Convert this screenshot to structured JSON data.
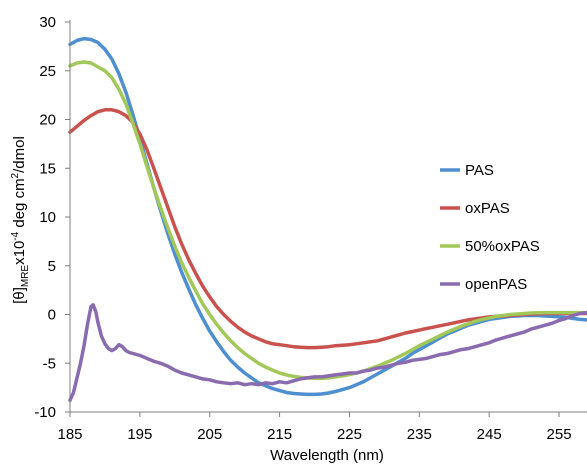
{
  "chart_data": {
    "type": "line",
    "xlabel": "Wavelength (nm)",
    "ylabel": {
      "prefix": "[θ]",
      "subscript": "MRE",
      "middle": "x10",
      "superscript": "-4",
      "suffix": " deg cm",
      "superscript2": "2",
      "tail": "/dmol"
    },
    "xlim": [
      185,
      259
    ],
    "ylim": [
      -10,
      30
    ],
    "xticks": [
      185,
      195,
      205,
      215,
      225,
      235,
      245,
      255
    ],
    "yticks": [
      -10,
      -5,
      0,
      5,
      10,
      15,
      20,
      25,
      30
    ],
    "grid": false,
    "legend": "right",
    "series": [
      {
        "name": "PAS",
        "color": "#4F8FCF",
        "points": [
          [
            185,
            27.7
          ],
          [
            186,
            28.1
          ],
          [
            187,
            28.3
          ],
          [
            188,
            28.2
          ],
          [
            189,
            27.9
          ],
          [
            190,
            27.2
          ],
          [
            191,
            26.2
          ],
          [
            192,
            24.7
          ],
          [
            193,
            22.8
          ],
          [
            194,
            20.5
          ],
          [
            195,
            18.0
          ],
          [
            196,
            15.5
          ],
          [
            197,
            13.0
          ],
          [
            198,
            10.6
          ],
          [
            199,
            8.3
          ],
          [
            200,
            6.2
          ],
          [
            201,
            4.3
          ],
          [
            202,
            2.6
          ],
          [
            203,
            1.0
          ],
          [
            204,
            -0.4
          ],
          [
            205,
            -1.7
          ],
          [
            206,
            -2.8
          ],
          [
            207,
            -3.8
          ],
          [
            208,
            -4.7
          ],
          [
            209,
            -5.4
          ],
          [
            210,
            -6.0
          ],
          [
            211,
            -6.5
          ],
          [
            212,
            -7.0
          ],
          [
            213,
            -7.3
          ],
          [
            214,
            -7.6
          ],
          [
            215,
            -7.8
          ],
          [
            216,
            -8.0
          ],
          [
            217,
            -8.1
          ],
          [
            218,
            -8.15
          ],
          [
            219,
            -8.2
          ],
          [
            220,
            -8.2
          ],
          [
            221,
            -8.15
          ],
          [
            222,
            -8.05
          ],
          [
            223,
            -7.9
          ],
          [
            224,
            -7.7
          ],
          [
            225,
            -7.5
          ],
          [
            226,
            -7.2
          ],
          [
            227,
            -6.9
          ],
          [
            228,
            -6.5
          ],
          [
            229,
            -6.1
          ],
          [
            230,
            -5.7
          ],
          [
            231,
            -5.3
          ],
          [
            232,
            -4.9
          ],
          [
            233,
            -4.5
          ],
          [
            234,
            -4.0
          ],
          [
            235,
            -3.6
          ],
          [
            236,
            -3.2
          ],
          [
            237,
            -2.8
          ],
          [
            238,
            -2.4
          ],
          [
            239,
            -2.0
          ],
          [
            240,
            -1.7
          ],
          [
            241,
            -1.4
          ],
          [
            242,
            -1.1
          ],
          [
            243,
            -0.9
          ],
          [
            244,
            -0.7
          ],
          [
            245,
            -0.5
          ],
          [
            246,
            -0.4
          ],
          [
            247,
            -0.3
          ],
          [
            248,
            -0.2
          ],
          [
            249,
            -0.15
          ],
          [
            250,
            -0.1
          ],
          [
            251,
            -0.1
          ],
          [
            252,
            -0.1
          ],
          [
            253,
            -0.15
          ],
          [
            254,
            -0.2
          ],
          [
            255,
            -0.25
          ],
          [
            256,
            -0.3
          ],
          [
            257,
            -0.4
          ],
          [
            258,
            -0.5
          ],
          [
            259,
            -0.55
          ]
        ]
      },
      {
        "name": "oxPAS",
        "color": "#C9524E",
        "points": [
          [
            185,
            18.7
          ],
          [
            186,
            19.3
          ],
          [
            187,
            19.9
          ],
          [
            188,
            20.4
          ],
          [
            189,
            20.8
          ],
          [
            190,
            21.0
          ],
          [
            191,
            21.0
          ],
          [
            192,
            20.8
          ],
          [
            193,
            20.4
          ],
          [
            194,
            19.7
          ],
          [
            195,
            18.5
          ],
          [
            196,
            16.9
          ],
          [
            197,
            15.0
          ],
          [
            198,
            13.0
          ],
          [
            199,
            11.0
          ],
          [
            200,
            9.0
          ],
          [
            201,
            7.2
          ],
          [
            202,
            5.6
          ],
          [
            203,
            4.2
          ],
          [
            204,
            2.9
          ],
          [
            205,
            1.8
          ],
          [
            206,
            0.8
          ],
          [
            207,
            0.0
          ],
          [
            208,
            -0.7
          ],
          [
            209,
            -1.3
          ],
          [
            210,
            -1.8
          ],
          [
            211,
            -2.2
          ],
          [
            212,
            -2.5
          ],
          [
            213,
            -2.8
          ],
          [
            214,
            -3.0
          ],
          [
            215,
            -3.1
          ],
          [
            216,
            -3.2
          ],
          [
            217,
            -3.3
          ],
          [
            218,
            -3.35
          ],
          [
            219,
            -3.4
          ],
          [
            220,
            -3.4
          ],
          [
            221,
            -3.35
          ],
          [
            222,
            -3.3
          ],
          [
            223,
            -3.2
          ],
          [
            224,
            -3.15
          ],
          [
            225,
            -3.1
          ],
          [
            226,
            -3.0
          ],
          [
            227,
            -2.9
          ],
          [
            228,
            -2.8
          ],
          [
            229,
            -2.7
          ],
          [
            230,
            -2.5
          ],
          [
            231,
            -2.3
          ],
          [
            232,
            -2.1
          ],
          [
            233,
            -1.9
          ],
          [
            234,
            -1.75
          ],
          [
            235,
            -1.6
          ],
          [
            236,
            -1.45
          ],
          [
            237,
            -1.3
          ],
          [
            238,
            -1.15
          ],
          [
            239,
            -1.0
          ],
          [
            240,
            -0.85
          ],
          [
            241,
            -0.7
          ],
          [
            242,
            -0.55
          ],
          [
            243,
            -0.45
          ],
          [
            244,
            -0.35
          ],
          [
            245,
            -0.25
          ],
          [
            246,
            -0.2
          ],
          [
            247,
            -0.15
          ],
          [
            248,
            -0.1
          ],
          [
            249,
            -0.05
          ],
          [
            250,
            0.0
          ],
          [
            251,
            0.05
          ],
          [
            252,
            0.08
          ],
          [
            253,
            0.1
          ],
          [
            254,
            0.1
          ],
          [
            255,
            0.1
          ],
          [
            256,
            0.1
          ],
          [
            257,
            0.1
          ],
          [
            258,
            0.1
          ],
          [
            259,
            0.1
          ]
        ]
      },
      {
        "name": "50%oxPAS",
        "color": "#A3C85A",
        "points": [
          [
            185,
            25.5
          ],
          [
            186,
            25.8
          ],
          [
            187,
            25.9
          ],
          [
            188,
            25.8
          ],
          [
            189,
            25.4
          ],
          [
            190,
            25.0
          ],
          [
            191,
            24.3
          ],
          [
            192,
            23.1
          ],
          [
            193,
            21.6
          ],
          [
            194,
            19.6
          ],
          [
            195,
            17.5
          ],
          [
            196,
            15.2
          ],
          [
            197,
            13.0
          ],
          [
            198,
            10.9
          ],
          [
            199,
            8.9
          ],
          [
            200,
            7.0
          ],
          [
            201,
            5.3
          ],
          [
            202,
            3.8
          ],
          [
            203,
            2.4
          ],
          [
            204,
            1.1
          ],
          [
            205,
            0.0
          ],
          [
            206,
            -1.0
          ],
          [
            207,
            -1.9
          ],
          [
            208,
            -2.7
          ],
          [
            209,
            -3.4
          ],
          [
            210,
            -4.0
          ],
          [
            211,
            -4.5
          ],
          [
            212,
            -5.0
          ],
          [
            213,
            -5.4
          ],
          [
            214,
            -5.7
          ],
          [
            215,
            -6.0
          ],
          [
            216,
            -6.2
          ],
          [
            217,
            -6.35
          ],
          [
            218,
            -6.45
          ],
          [
            219,
            -6.5
          ],
          [
            220,
            -6.55
          ],
          [
            221,
            -6.55
          ],
          [
            222,
            -6.5
          ],
          [
            223,
            -6.4
          ],
          [
            224,
            -6.3
          ],
          [
            225,
            -6.15
          ],
          [
            226,
            -6.0
          ],
          [
            227,
            -5.8
          ],
          [
            228,
            -5.55
          ],
          [
            229,
            -5.3
          ],
          [
            230,
            -5.0
          ],
          [
            231,
            -4.7
          ],
          [
            232,
            -4.35
          ],
          [
            233,
            -4.0
          ],
          [
            234,
            -3.6
          ],
          [
            235,
            -3.2
          ],
          [
            236,
            -2.85
          ],
          [
            237,
            -2.5
          ],
          [
            238,
            -2.15
          ],
          [
            239,
            -1.8
          ],
          [
            240,
            -1.5
          ],
          [
            241,
            -1.2
          ],
          [
            242,
            -0.95
          ],
          [
            243,
            -0.7
          ],
          [
            244,
            -0.5
          ],
          [
            245,
            -0.35
          ],
          [
            246,
            -0.2
          ],
          [
            247,
            -0.1
          ],
          [
            248,
            0.0
          ],
          [
            249,
            0.05
          ],
          [
            250,
            0.1
          ],
          [
            251,
            0.15
          ],
          [
            252,
            0.18
          ],
          [
            253,
            0.2
          ],
          [
            254,
            0.2
          ],
          [
            255,
            0.2
          ],
          [
            256,
            0.2
          ],
          [
            257,
            0.2
          ],
          [
            258,
            0.2
          ],
          [
            259,
            0.2
          ]
        ]
      },
      {
        "name": "openPAS",
        "color": "#8A6BB0",
        "points": [
          [
            185,
            -8.8
          ],
          [
            185.5,
            -8.0
          ],
          [
            186,
            -6.5
          ],
          [
            186.5,
            -5.0
          ],
          [
            187,
            -3.2
          ],
          [
            187.5,
            -1.0
          ],
          [
            188,
            0.8
          ],
          [
            188.3,
            1.0
          ],
          [
            188.7,
            0.3
          ],
          [
            189,
            -0.8
          ],
          [
            189.5,
            -2.2
          ],
          [
            190,
            -3.0
          ],
          [
            190.5,
            -3.5
          ],
          [
            191,
            -3.7
          ],
          [
            191.5,
            -3.5
          ],
          [
            192,
            -3.1
          ],
          [
            192.5,
            -3.3
          ],
          [
            193,
            -3.7
          ],
          [
            193.5,
            -3.9
          ],
          [
            194,
            -4.0
          ],
          [
            195,
            -4.2
          ],
          [
            196,
            -4.5
          ],
          [
            197,
            -4.8
          ],
          [
            198,
            -5.0
          ],
          [
            199,
            -5.3
          ],
          [
            200,
            -5.7
          ],
          [
            201,
            -6.0
          ],
          [
            202,
            -6.2
          ],
          [
            203,
            -6.4
          ],
          [
            204,
            -6.6
          ],
          [
            205,
            -6.7
          ],
          [
            206,
            -6.9
          ],
          [
            207,
            -7.0
          ],
          [
            208,
            -7.1
          ],
          [
            209,
            -7.0
          ],
          [
            210,
            -7.2
          ],
          [
            211,
            -7.1
          ],
          [
            212,
            -7.2
          ],
          [
            213,
            -7.0
          ],
          [
            214,
            -7.1
          ],
          [
            215,
            -6.9
          ],
          [
            216,
            -7.0
          ],
          [
            217,
            -6.8
          ],
          [
            218,
            -6.6
          ],
          [
            219,
            -6.5
          ],
          [
            220,
            -6.4
          ],
          [
            221,
            -6.4
          ],
          [
            222,
            -6.3
          ],
          [
            223,
            -6.2
          ],
          [
            224,
            -6.1
          ],
          [
            225,
            -6.0
          ],
          [
            226,
            -6.0
          ],
          [
            227,
            -5.8
          ],
          [
            228,
            -5.7
          ],
          [
            229,
            -5.5
          ],
          [
            230,
            -5.4
          ],
          [
            231,
            -5.2
          ],
          [
            232,
            -5.0
          ],
          [
            233,
            -4.9
          ],
          [
            234,
            -4.7
          ],
          [
            235,
            -4.6
          ],
          [
            236,
            -4.5
          ],
          [
            237,
            -4.3
          ],
          [
            238,
            -4.1
          ],
          [
            239,
            -4.0
          ],
          [
            240,
            -3.8
          ],
          [
            241,
            -3.6
          ],
          [
            242,
            -3.5
          ],
          [
            243,
            -3.3
          ],
          [
            244,
            -3.1
          ],
          [
            245,
            -2.9
          ],
          [
            246,
            -2.6
          ],
          [
            247,
            -2.4
          ],
          [
            248,
            -2.2
          ],
          [
            249,
            -2.0
          ],
          [
            250,
            -1.8
          ],
          [
            251,
            -1.5
          ],
          [
            252,
            -1.3
          ],
          [
            253,
            -1.1
          ],
          [
            254,
            -0.9
          ],
          [
            255,
            -0.6
          ],
          [
            256,
            -0.4
          ],
          [
            257,
            -0.1
          ],
          [
            258,
            0.1
          ],
          [
            259,
            0.2
          ]
        ]
      }
    ]
  }
}
